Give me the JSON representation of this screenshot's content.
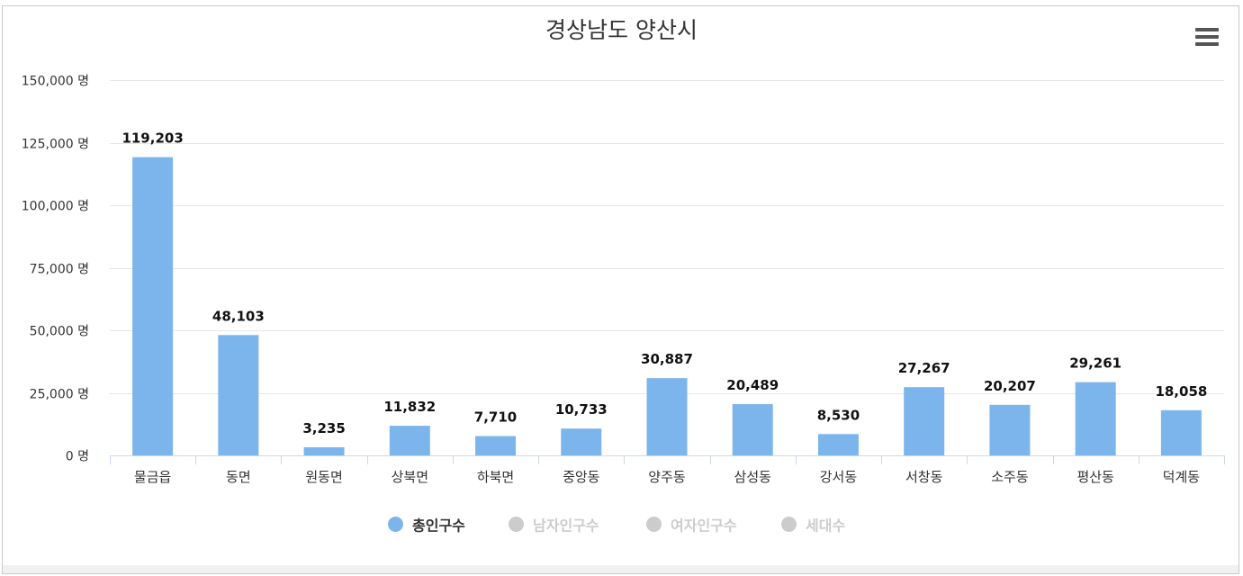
{
  "title": "경상남도 양산시",
  "menu_icon": "hamburger-menu-icon",
  "chart_data": {
    "type": "bar",
    "title": "경상남도 양산시",
    "categories": [
      "물금읍",
      "동면",
      "원동면",
      "상북면",
      "하북면",
      "중앙동",
      "양주동",
      "삼성동",
      "강서동",
      "서창동",
      "소주동",
      "평산동",
      "덕계동"
    ],
    "series": [
      {
        "name": "총인구수",
        "values": [
          119203,
          48103,
          3235,
          11832,
          7710,
          10733,
          30887,
          20489,
          8530,
          27267,
          20207,
          29261,
          18058
        ],
        "visible": true
      },
      {
        "name": "남자인구수",
        "visible": false
      },
      {
        "name": "여자인구수",
        "visible": false
      },
      {
        "name": "세대수",
        "visible": false
      }
    ],
    "data_labels": [
      "119,203",
      "48,103",
      "3,235",
      "11,832",
      "7,710",
      "10,733",
      "30,887",
      "20,489",
      "8,530",
      "27,267",
      "20,207",
      "29,261",
      "18,058"
    ],
    "ylim": [
      0,
      150000
    ],
    "yticks": [
      0,
      25000,
      50000,
      75000,
      100000,
      125000,
      150000
    ],
    "ytick_labels": [
      "0 명",
      "25,000 명",
      "50,000 명",
      "75,000 명",
      "100,000 명",
      "125,000 명",
      "150,000 명"
    ],
    "grid": true,
    "legend_position": "bottom-center",
    "colors": {
      "bar": "#7cb5ec",
      "inactive": "#cccccc",
      "grid": "#e6e6e6",
      "axis": "#ccd6eb"
    }
  },
  "legend": [
    {
      "label": "총인구수",
      "active": true
    },
    {
      "label": "남자인구수",
      "active": false
    },
    {
      "label": "여자인구수",
      "active": false
    },
    {
      "label": "세대수",
      "active": false
    }
  ]
}
